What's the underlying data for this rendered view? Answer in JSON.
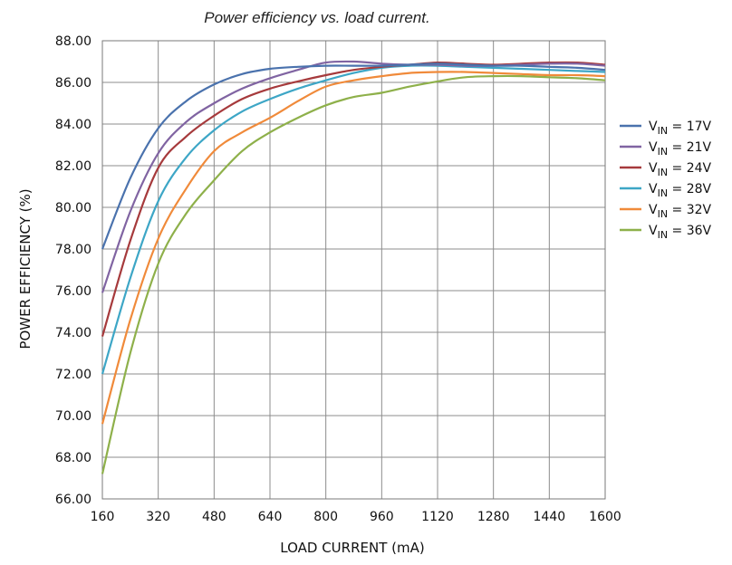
{
  "chart_data": {
    "type": "line",
    "title": "Power efficiency vs. load current.",
    "xlabel": "LOAD CURRENT (mA)",
    "ylabel": "POWER EFFICIENCY (%)",
    "xlim": [
      160,
      1600
    ],
    "ylim": [
      66,
      88
    ],
    "xticks": [
      "160",
      "320",
      "480",
      "640",
      "800",
      "960",
      "1120",
      "1280",
      "1440",
      "1600"
    ],
    "yticks": [
      "66.00",
      "68.00",
      "70.00",
      "72.00",
      "74.00",
      "76.00",
      "78.00",
      "80.00",
      "82.00",
      "84.00",
      "86.00",
      "88.00"
    ],
    "grid": true,
    "legend_position": "right",
    "x": [
      160,
      240,
      320,
      400,
      480,
      560,
      640,
      720,
      800,
      880,
      960,
      1040,
      1120,
      1200,
      1280,
      1360,
      1440,
      1520,
      1600
    ],
    "series": [
      {
        "label_main": "V",
        "label_sub": "IN",
        "label_rest": " = 17V",
        "color": "#4a72ad",
        "values": [
          78.0,
          81.4,
          83.8,
          85.1,
          85.9,
          86.4,
          86.65,
          86.75,
          86.8,
          86.8,
          86.8,
          86.85,
          86.9,
          86.85,
          86.8,
          86.8,
          86.75,
          86.7,
          86.6
        ]
      },
      {
        "label_main": "V",
        "label_sub": "IN",
        "label_rest": " = 21V",
        "color": "#8064a2",
        "values": [
          75.9,
          79.8,
          82.6,
          84.1,
          85.0,
          85.7,
          86.2,
          86.6,
          86.95,
          87.0,
          86.9,
          86.85,
          86.85,
          86.8,
          86.8,
          86.85,
          86.9,
          86.9,
          86.8
        ]
      },
      {
        "label_main": "V",
        "label_sub": "IN",
        "label_rest": " = 24V",
        "color": "#a63a3c",
        "values": [
          73.8,
          78.4,
          81.9,
          83.4,
          84.4,
          85.2,
          85.7,
          86.05,
          86.35,
          86.6,
          86.75,
          86.85,
          86.95,
          86.9,
          86.85,
          86.9,
          86.95,
          86.95,
          86.85
        ]
      },
      {
        "label_main": "V",
        "label_sub": "IN",
        "label_rest": " = 28V",
        "color": "#3da6c6",
        "values": [
          72.0,
          76.6,
          80.3,
          82.4,
          83.7,
          84.6,
          85.2,
          85.7,
          86.1,
          86.45,
          86.7,
          86.8,
          86.8,
          86.75,
          86.7,
          86.65,
          86.6,
          86.55,
          86.5
        ]
      },
      {
        "label_main": "V",
        "label_sub": "IN",
        "label_rest": " = 32V",
        "color": "#f08a3a",
        "values": [
          69.6,
          74.6,
          78.5,
          80.9,
          82.7,
          83.6,
          84.3,
          85.1,
          85.8,
          86.1,
          86.3,
          86.45,
          86.5,
          86.5,
          86.45,
          86.4,
          86.35,
          86.35,
          86.3
        ]
      },
      {
        "label_main": "V",
        "label_sub": "IN",
        "label_rest": " = 36V",
        "color": "#8eb04a",
        "values": [
          67.2,
          73.0,
          77.3,
          79.7,
          81.3,
          82.7,
          83.6,
          84.3,
          84.9,
          85.3,
          85.5,
          85.8,
          86.05,
          86.25,
          86.3,
          86.3,
          86.25,
          86.2,
          86.1
        ]
      }
    ]
  }
}
